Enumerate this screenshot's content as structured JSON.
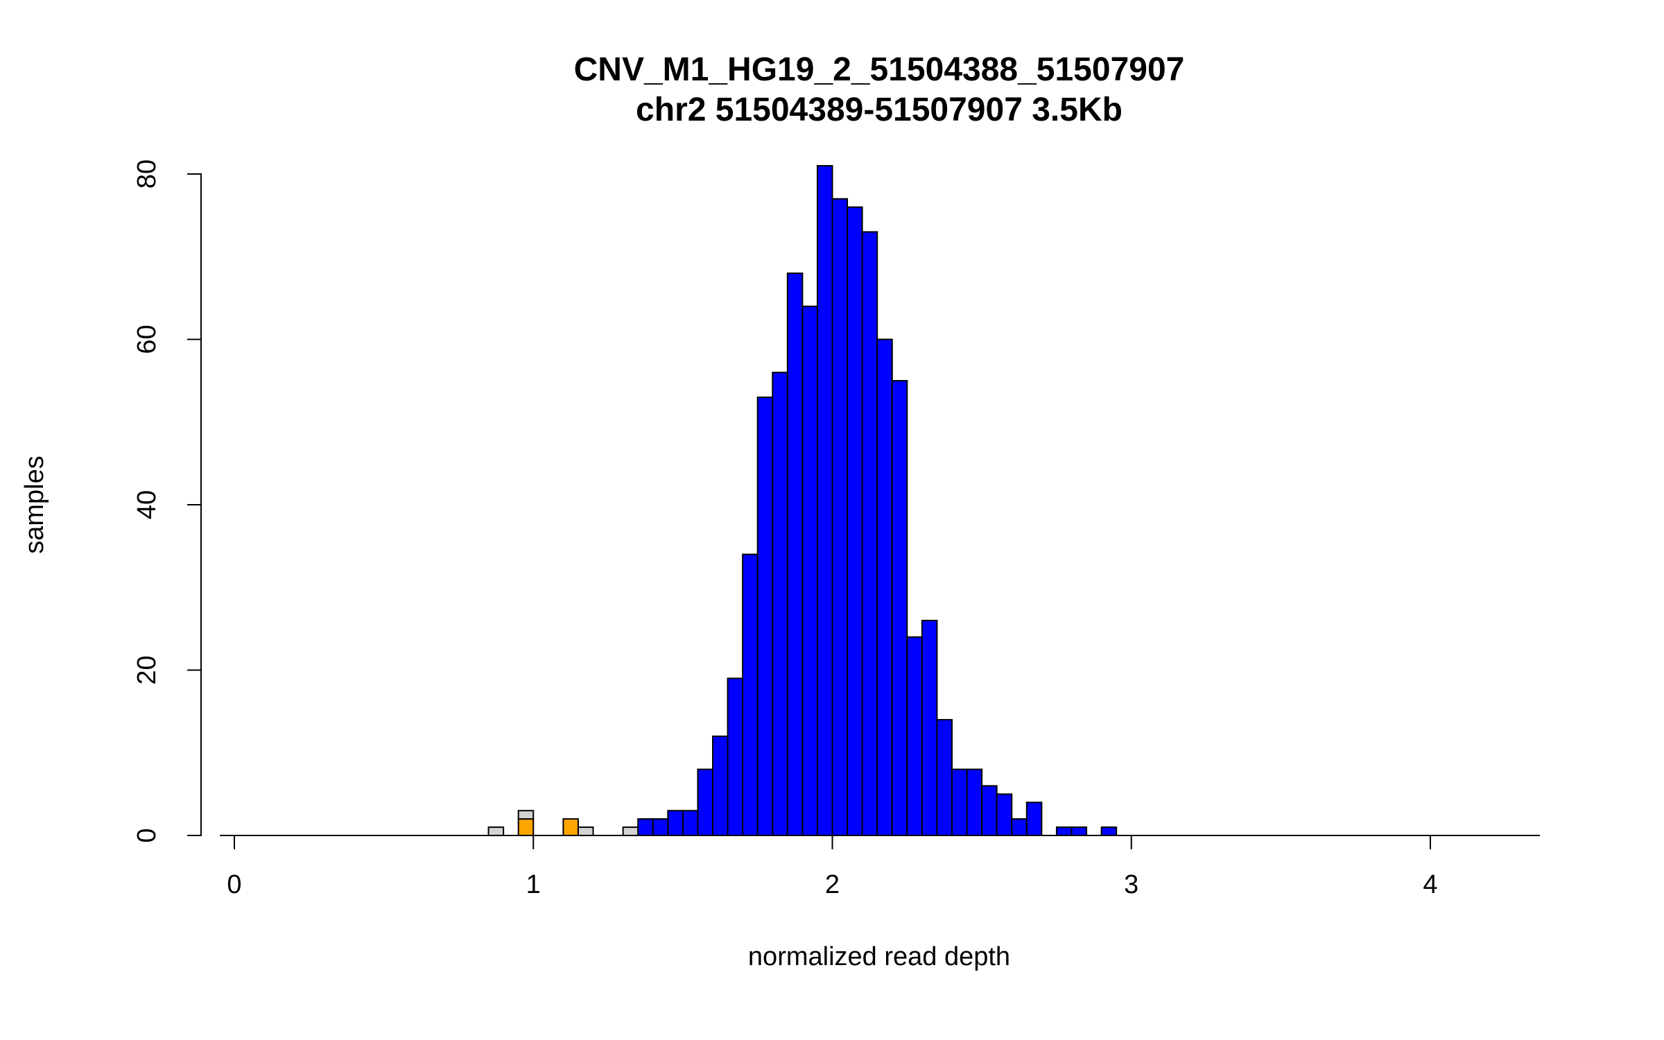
{
  "chart_data": {
    "type": "bar",
    "title": "CNV_M1_HG19_2_51504388_51507907",
    "subtitle": "chr2 51504389-51507907 3.5Kb",
    "xlabel": "normalized read depth",
    "ylabel": "samples",
    "xlim": [
      0,
      4.4
    ],
    "ylim": [
      0,
      80
    ],
    "grid": false,
    "legend": "none",
    "bin_width": 0.05,
    "x_ticks": [
      {
        "value": 0,
        "label": "0"
      },
      {
        "value": 1,
        "label": "1"
      },
      {
        "value": 2,
        "label": "2"
      },
      {
        "value": 3,
        "label": "3"
      },
      {
        "value": 4,
        "label": "4"
      }
    ],
    "y_ticks": [
      {
        "value": 0,
        "label": "0"
      },
      {
        "value": 20,
        "label": "20"
      },
      {
        "value": 40,
        "label": "40"
      },
      {
        "value": 60,
        "label": "60"
      },
      {
        "value": 80,
        "label": "80"
      }
    ],
    "colors": {
      "blue": "#0000FF",
      "orange": "#FFA500",
      "gray": "#D3D3D3",
      "border": "#000000",
      "background": "#FFFFFF"
    },
    "bars": [
      {
        "x": 0.85,
        "segments": [
          {
            "color": "gray",
            "count": 1
          }
        ]
      },
      {
        "x": 0.95,
        "segments": [
          {
            "color": "orange",
            "count": 2
          },
          {
            "color": "gray",
            "count": 1
          }
        ]
      },
      {
        "x": 1.1,
        "segments": [
          {
            "color": "orange",
            "count": 2
          }
        ]
      },
      {
        "x": 1.15,
        "segments": [
          {
            "color": "gray",
            "count": 1
          }
        ]
      },
      {
        "x": 1.3,
        "segments": [
          {
            "color": "gray",
            "count": 1
          }
        ]
      },
      {
        "x": 1.35,
        "segments": [
          {
            "color": "blue",
            "count": 2
          }
        ]
      },
      {
        "x": 1.4,
        "segments": [
          {
            "color": "blue",
            "count": 2
          }
        ]
      },
      {
        "x": 1.45,
        "segments": [
          {
            "color": "blue",
            "count": 3
          }
        ]
      },
      {
        "x": 1.5,
        "segments": [
          {
            "color": "blue",
            "count": 3
          }
        ]
      },
      {
        "x": 1.55,
        "segments": [
          {
            "color": "blue",
            "count": 8
          }
        ]
      },
      {
        "x": 1.6,
        "segments": [
          {
            "color": "blue",
            "count": 12
          }
        ]
      },
      {
        "x": 1.65,
        "segments": [
          {
            "color": "blue",
            "count": 19
          }
        ]
      },
      {
        "x": 1.7,
        "segments": [
          {
            "color": "blue",
            "count": 34
          }
        ]
      },
      {
        "x": 1.75,
        "segments": [
          {
            "color": "blue",
            "count": 53
          }
        ]
      },
      {
        "x": 1.8,
        "segments": [
          {
            "color": "blue",
            "count": 56
          }
        ]
      },
      {
        "x": 1.85,
        "segments": [
          {
            "color": "blue",
            "count": 68
          }
        ]
      },
      {
        "x": 1.9,
        "segments": [
          {
            "color": "blue",
            "count": 64
          }
        ]
      },
      {
        "x": 1.95,
        "segments": [
          {
            "color": "blue",
            "count": 81
          }
        ]
      },
      {
        "x": 2.0,
        "segments": [
          {
            "color": "blue",
            "count": 77
          }
        ]
      },
      {
        "x": 2.05,
        "segments": [
          {
            "color": "blue",
            "count": 76
          }
        ]
      },
      {
        "x": 2.1,
        "segments": [
          {
            "color": "blue",
            "count": 73
          }
        ]
      },
      {
        "x": 2.15,
        "segments": [
          {
            "color": "blue",
            "count": 60
          }
        ]
      },
      {
        "x": 2.2,
        "segments": [
          {
            "color": "blue",
            "count": 55
          }
        ]
      },
      {
        "x": 2.25,
        "segments": [
          {
            "color": "blue",
            "count": 24
          }
        ]
      },
      {
        "x": 2.3,
        "segments": [
          {
            "color": "blue",
            "count": 26
          }
        ]
      },
      {
        "x": 2.35,
        "segments": [
          {
            "color": "blue",
            "count": 14
          }
        ]
      },
      {
        "x": 2.4,
        "segments": [
          {
            "color": "blue",
            "count": 8
          }
        ]
      },
      {
        "x": 2.45,
        "segments": [
          {
            "color": "blue",
            "count": 8
          }
        ]
      },
      {
        "x": 2.5,
        "segments": [
          {
            "color": "blue",
            "count": 6
          }
        ]
      },
      {
        "x": 2.55,
        "segments": [
          {
            "color": "blue",
            "count": 5
          }
        ]
      },
      {
        "x": 2.6,
        "segments": [
          {
            "color": "blue",
            "count": 2
          }
        ]
      },
      {
        "x": 2.65,
        "segments": [
          {
            "color": "blue",
            "count": 4
          }
        ]
      },
      {
        "x": 2.75,
        "segments": [
          {
            "color": "blue",
            "count": 1
          }
        ]
      },
      {
        "x": 2.8,
        "segments": [
          {
            "color": "blue",
            "count": 1
          }
        ]
      },
      {
        "x": 2.9,
        "segments": [
          {
            "color": "blue",
            "count": 1
          }
        ]
      }
    ]
  }
}
